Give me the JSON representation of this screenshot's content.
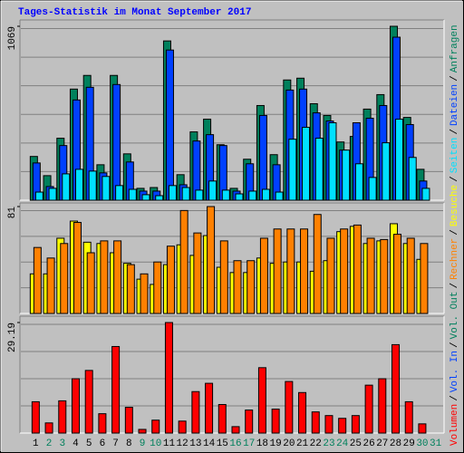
{
  "chart_data": [
    {
      "type": "bar",
      "title": "Tages-Statistik im Monat September 2017",
      "ylim": [
        0,
        1069
      ],
      "yticks": [
        1069
      ],
      "series": [
        {
          "name": "Anfragen",
          "color": "#00805c",
          "values": [
            269,
            151,
            381,
            683,
            767,
            218,
            767,
            285,
            73,
            78,
            979,
            157,
            420,
            498,
            341,
            73,
            252,
            582,
            280,
            739,
            750,
            593,
            521,
            358,
            392,
            560,
            649,
            1069,
            509,
            190,
            0
          ]
        },
        {
          "name": "Dateien",
          "color": "#0040ff",
          "values": [
            229,
            84,
            336,
            616,
            694,
            168,
            711,
            235,
            56,
            56,
            923,
            95,
            364,
            403,
            336,
            56,
            224,
            521,
            218,
            677,
            683,
            537,
            487,
            308,
            476,
            504,
            582,
            1002,
            465,
            118,
            0
          ]
        },
        {
          "name": "Seiten",
          "color": "#00e0ff",
          "values": [
            50,
            73,
            162,
            190,
            179,
            146,
            90,
            67,
            34,
            28,
            90,
            78,
            62,
            118,
            62,
            39,
            56,
            67,
            50,
            375,
            448,
            381,
            476,
            308,
            224,
            140,
            353,
            498,
            263,
            73,
            0
          ]
        }
      ]
    },
    {
      "type": "bar",
      "ylim": [
        0,
        81
      ],
      "yticks": [
        81
      ],
      "series": [
        {
          "name": "Besuche",
          "color": "#ffff00",
          "values": [
            30,
            30,
            57,
            70,
            54,
            53,
            46,
            38,
            26,
            22,
            37,
            52,
            44,
            59,
            35,
            31,
            31,
            42,
            38,
            39,
            39,
            32,
            40,
            62,
            66,
            53,
            55,
            68,
            53,
            41,
            0
          ]
        },
        {
          "name": "Rechner",
          "color": "#ff8000",
          "values": [
            50,
            42,
            53,
            69,
            46,
            55,
            55,
            37,
            30,
            39,
            51,
            78,
            61,
            81,
            55,
            40,
            40,
            57,
            64,
            64,
            64,
            75,
            57,
            64,
            67,
            57,
            56,
            60,
            57,
            53,
            0
          ]
        }
      ]
    },
    {
      "type": "bar",
      "ylim": [
        0,
        29.19
      ],
      "yticks": [
        29.19
      ],
      "categories": [
        "1",
        "2",
        "3",
        "4",
        "5",
        "6",
        "7",
        "8",
        "9",
        "10",
        "11",
        "12",
        "13",
        "14",
        "15",
        "16",
        "17",
        "18",
        "19",
        "20",
        "21",
        "22",
        "23",
        "24",
        "25",
        "26",
        "27",
        "28",
        "29",
        "30",
        "31"
      ],
      "category_colors": [
        "#000000",
        "#00805c",
        "#00805c",
        "#000000",
        "#000000",
        "#000000",
        "#000000",
        "#000000",
        "#00805c",
        "#00805c",
        "#000000",
        "#000000",
        "#000000",
        "#000000",
        "#000000",
        "#00805c",
        "#00805c",
        "#000000",
        "#000000",
        "#000000",
        "#000000",
        "#000000",
        "#00805c",
        "#00805c",
        "#000000",
        "#000000",
        "#000000",
        "#000000",
        "#000000",
        "#00805c",
        "#00805c"
      ],
      "series": [
        {
          "name": "Volumen",
          "color": "#ff0000",
          "values": [
            8.27,
            2.68,
            8.51,
            14.35,
            16.54,
            5.11,
            22.86,
            6.81,
            0.97,
            3.41,
            29.19,
            3.16,
            10.95,
            13.14,
            7.54,
            1.7,
            6.08,
            17.27,
            6.32,
            13.62,
            10.7,
            5.59,
            4.62,
            3.89,
            4.62,
            12.65,
            14.35,
            23.35,
            8.27,
            2.43,
            0
          ]
        }
      ],
      "extra_legend": [
        {
          "name": "Vol. In",
          "color": "#0040ff"
        },
        {
          "name": "Vol. Out",
          "color": "#00805c"
        }
      ],
      "legend_separator": "/"
    }
  ]
}
